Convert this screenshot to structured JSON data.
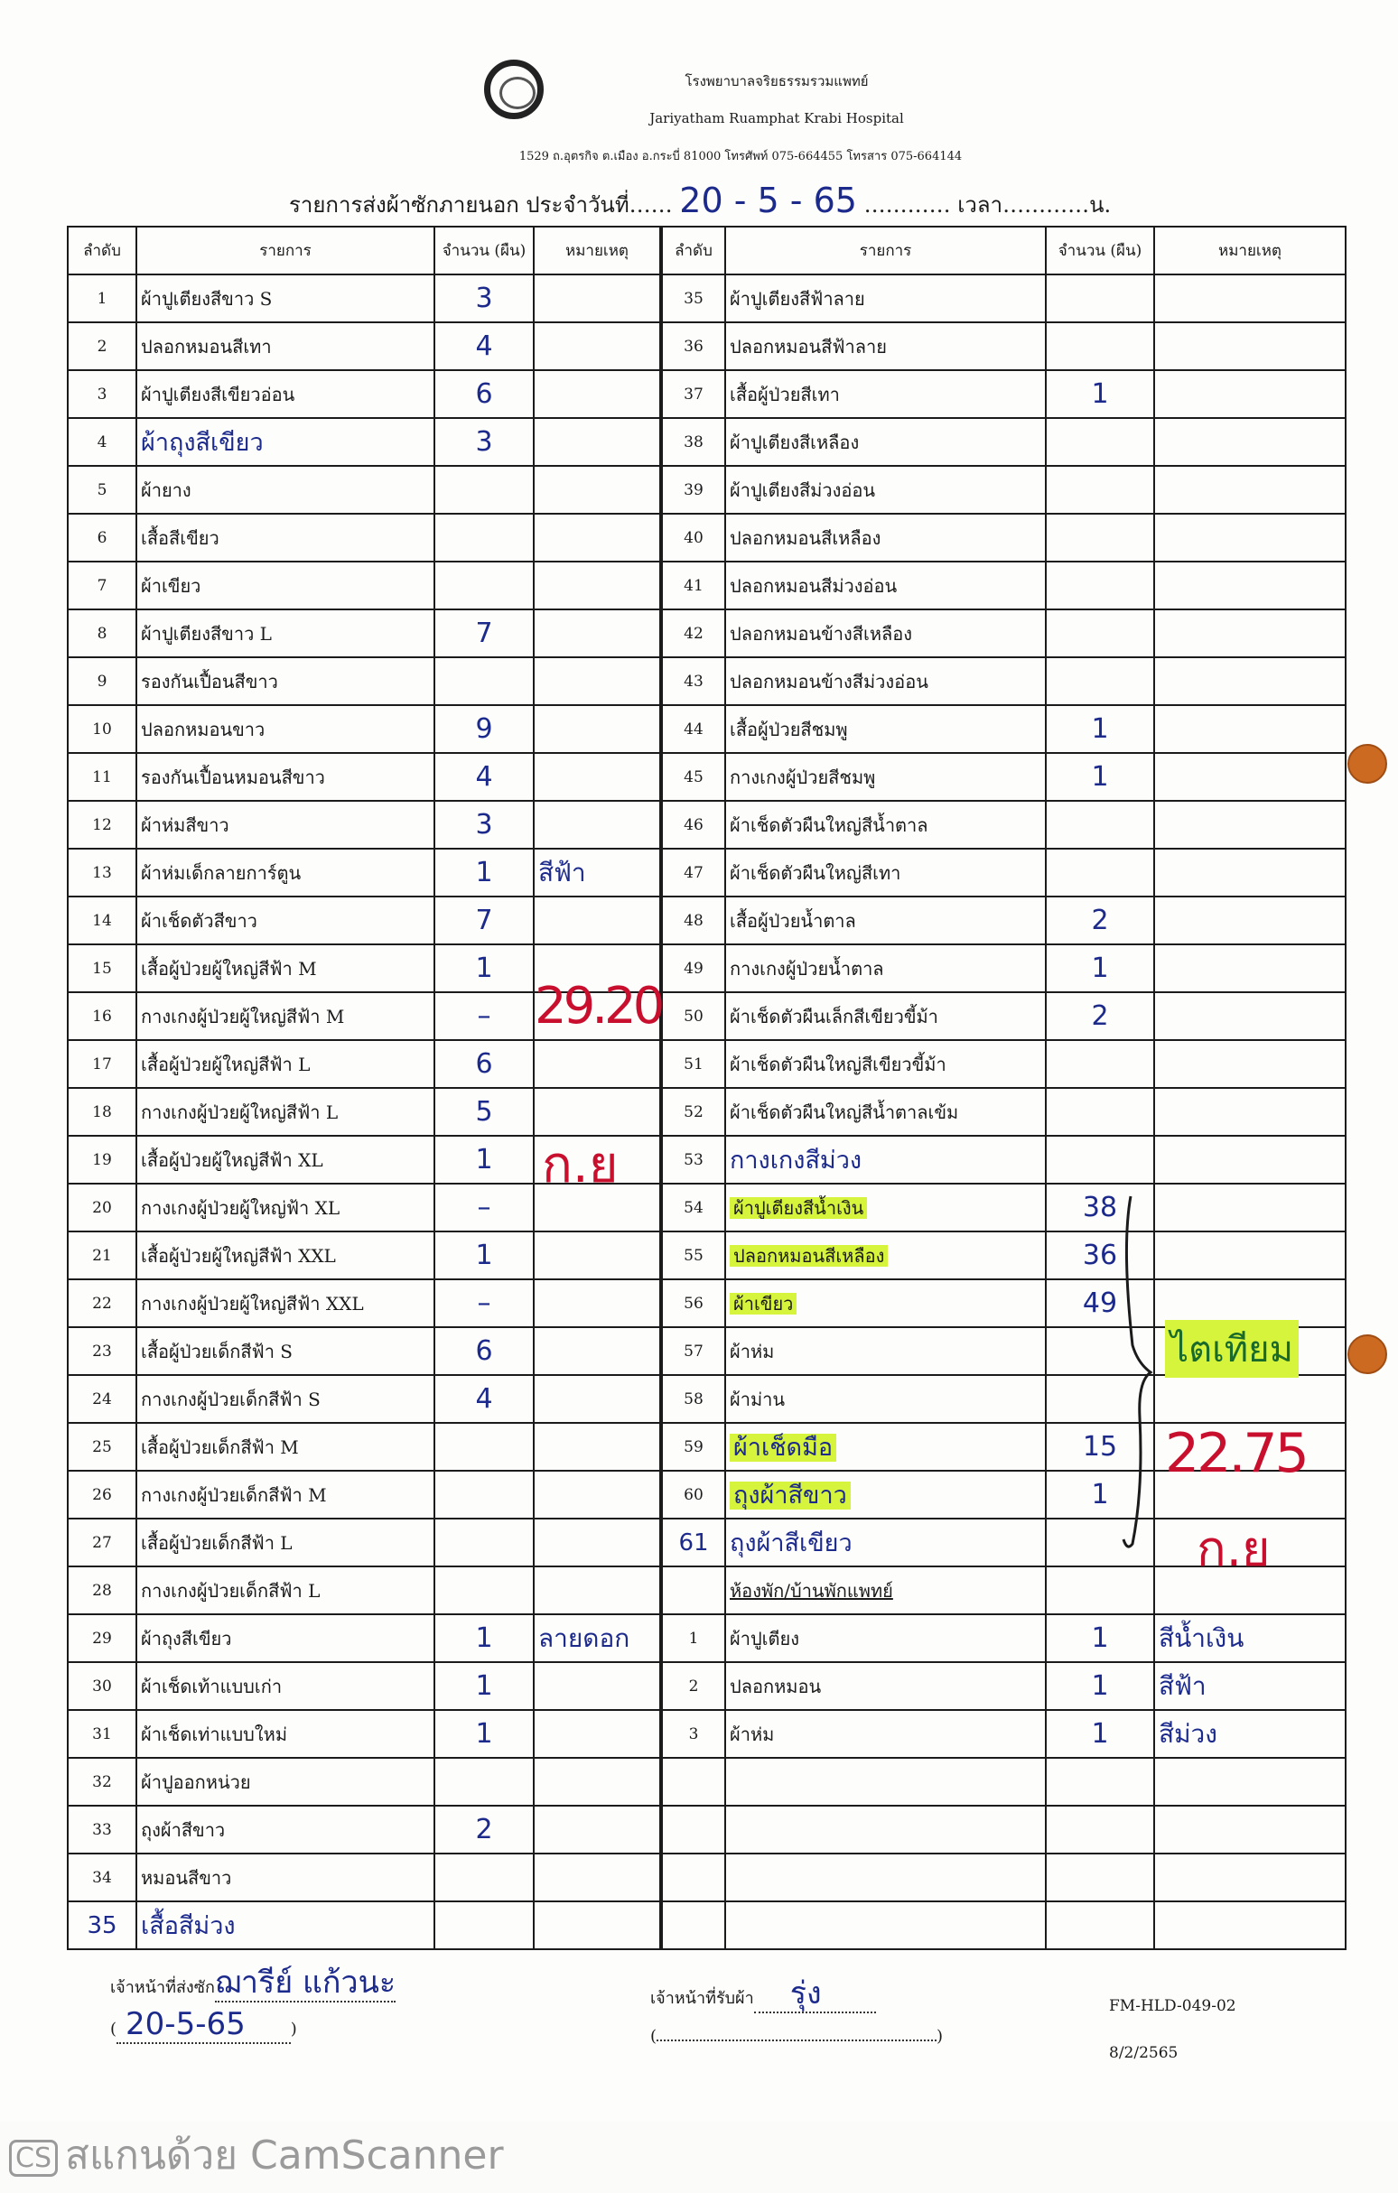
{
  "header": {
    "hospital_th": "โรงพยาบาลจริยธรรมรวมแพทย์",
    "hospital_en": "Jariyatham Ruamphat Krabi Hospital",
    "address": "1529 ถ.อุตรกิจ ต.เมือง อ.กระบี่ 81000 โทรศัพท์ 075-664455 โทรสาร 075-664144",
    "form_title": "รายการส่งผ้าซักภายนอก ประจำวันที่",
    "date_handwritten": "20 - 5 - 65",
    "time_label": "เวลา",
    "time_suffix": "น."
  },
  "columns": [
    "ลำดับ",
    "รายการ",
    "จำนวน (ผืน)",
    "หมายเหตุ"
  ],
  "left_rows": [
    {
      "no": "1",
      "item": "ผ้าปูเตียงสีขาว S",
      "qty": "3"
    },
    {
      "no": "2",
      "item": "ปลอกหมอนสีเทา",
      "qty": "4"
    },
    {
      "no": "3",
      "item": "ผ้าปูเตียงสีเขียวอ่อน",
      "qty": "6"
    },
    {
      "no": "4",
      "item": "ผ้าถุงสีเขียว",
      "qty": "3",
      "hand_item": true
    },
    {
      "no": "5",
      "item": "ผ้ายาง"
    },
    {
      "no": "6",
      "item": "เสื้อสีเขียว"
    },
    {
      "no": "7",
      "item": "ผ้าเขียว"
    },
    {
      "no": "8",
      "item": "ผ้าปูเตียงสีขาว L",
      "qty": "7"
    },
    {
      "no": "9",
      "item": "รองกันเปื้อนสีขาว"
    },
    {
      "no": "10",
      "item": "ปลอกหมอนขาว",
      "qty": "9"
    },
    {
      "no": "11",
      "item": "รองกันเปื้อนหมอนสีขาว",
      "qty": "4"
    },
    {
      "no": "12",
      "item": "ผ้าห่มสีขาว",
      "qty": "3"
    },
    {
      "no": "13",
      "item": "ผ้าห่มเด็กลายการ์ตูน",
      "qty": "1",
      "note": "สีฟ้า"
    },
    {
      "no": "14",
      "item": "ผ้าเช็ดตัวสีขาว",
      "qty": "7"
    },
    {
      "no": "15",
      "item": "เสื้อผู้ป่วยผู้ใหญ่สีฟ้า M",
      "qty": "1"
    },
    {
      "no": "16",
      "item": "กางเกงผู้ป่วยผู้ใหญ่สีฟ้า M",
      "qty": "–"
    },
    {
      "no": "17",
      "item": "เสื้อผู้ป่วยผู้ใหญ่สีฟ้า L",
      "qty": "6"
    },
    {
      "no": "18",
      "item": "กางเกงผู้ป่วยผู้ใหญ่สีฟ้า L",
      "qty": "5"
    },
    {
      "no": "19",
      "item": "เสื้อผู้ป่วยผู้ใหญ่สีฟ้า XL",
      "qty": "1"
    },
    {
      "no": "20",
      "item": "กางเกงผู้ป่วยผู้ใหญ่ฟ้า XL",
      "qty": "–"
    },
    {
      "no": "21",
      "item": "เสื้อผู้ป่วยผู้ใหญ่สีฟ้า XXL",
      "qty": "1"
    },
    {
      "no": "22",
      "item": "กางเกงผู้ป่วยผู้ใหญ่สีฟ้า XXL",
      "qty": "–"
    },
    {
      "no": "23",
      "item": "เสื้อผู้ป่วยเด็กสีฟ้า S",
      "qty": "6"
    },
    {
      "no": "24",
      "item": "กางเกงผู้ป่วยเด็กสีฟ้า S",
      "qty": "4"
    },
    {
      "no": "25",
      "item": "เสื้อผู้ป่วยเด็กสีฟ้า M"
    },
    {
      "no": "26",
      "item": "กางเกงผู้ป่วยเด็กสีฟ้า M"
    },
    {
      "no": "27",
      "item": "เสื้อผู้ป่วยเด็กสีฟ้า L"
    },
    {
      "no": "28",
      "item": "กางเกงผู้ป่วยเด็กสีฟ้า L"
    },
    {
      "no": "29",
      "item": "ผ้าถุงสีเขียว",
      "qty": "1",
      "note": "ลายดอก"
    },
    {
      "no": "30",
      "item": "ผ้าเช็ดเท้าแบบเก่า",
      "qty": "1"
    },
    {
      "no": "31",
      "item": "ผ้าเช็ดเท่าแบบใหม่",
      "qty": "1"
    },
    {
      "no": "32",
      "item": "ผ้าปูออกหน่วย"
    },
    {
      "no": "33",
      "item": "ถุงผ้าสีขาว",
      "qty": "2"
    },
    {
      "no": "34",
      "item": "หมอนสีขาว"
    },
    {
      "no": "35",
      "item": "เสื้อสีม่วง",
      "hand_item": true,
      "hand_no": true
    }
  ],
  "right_rows": [
    {
      "no": "35",
      "item": "ผ้าปูเตียงสีฟ้าลาย"
    },
    {
      "no": "36",
      "item": "ปลอกหมอนสีฟ้าลาย"
    },
    {
      "no": "37",
      "item": "เสื้อผู้ป่วยสีเทา",
      "qty": "1"
    },
    {
      "no": "38",
      "item": "ผ้าปูเตียงสีเหลือง"
    },
    {
      "no": "39",
      "item": "ผ้าปูเตียงสีม่วงอ่อน"
    },
    {
      "no": "40",
      "item": "ปลอกหมอนสีเหลือง"
    },
    {
      "no": "41",
      "item": "ปลอกหมอนสีม่วงอ่อน"
    },
    {
      "no": "42",
      "item": "ปลอกหมอนข้างสีเหลือง"
    },
    {
      "no": "43",
      "item": "ปลอกหมอนข้างสีม่วงอ่อน"
    },
    {
      "no": "44",
      "item": "เสื้อผู้ป่วยสีชมพู",
      "qty": "1"
    },
    {
      "no": "45",
      "item": "กางเกงผู้ป่วยสีชมพู",
      "qty": "1"
    },
    {
      "no": "46",
      "item": "ผ้าเช็ดตัวผืนใหญ่สีน้ำตาล"
    },
    {
      "no": "47",
      "item": "ผ้าเช็ดตัวผืนใหญ่สีเทา"
    },
    {
      "no": "48",
      "item": "เสื้อผู้ป่วยน้ำตาล",
      "qty": "2"
    },
    {
      "no": "49",
      "item": "กางเกงผู้ป่วยน้ำตาล",
      "qty": "1"
    },
    {
      "no": "50",
      "item": "ผ้าเช็ดตัวผืนเล็กสีเขียวขี้ม้า",
      "qty": "2"
    },
    {
      "no": "51",
      "item": "ผ้าเช็ดตัวผืนใหญ่สีเขียวขี้ม้า"
    },
    {
      "no": "52",
      "item": "ผ้าเช็ดตัวผืนใหญ่สีน้ำตาลเข้ม"
    },
    {
      "no": "53",
      "item": "กางเกงสีม่วง",
      "hand_item": true
    },
    {
      "no": "54",
      "item": "ผ้าปูเตียงสีน้ำเงิน",
      "qty": "38",
      "highlight": true
    },
    {
      "no": "55",
      "item": "ปลอกหมอนสีเหลือง",
      "qty": "36",
      "highlight": true
    },
    {
      "no": "56",
      "item": "ผ้าเขียว",
      "qty": "49",
      "highlight": true
    },
    {
      "no": "57",
      "item": "ผ้าห่ม"
    },
    {
      "no": "58",
      "item": "ผ้าม่าน"
    },
    {
      "no": "59",
      "item": "ผ้าเช็ดมือ",
      "qty": "15",
      "highlight": true,
      "hand_item": true
    },
    {
      "no": "60",
      "item": "ถุงผ้าสีขาว",
      "qty": "1",
      "highlight": true,
      "hand_item": true
    },
    {
      "no": "61",
      "item": "ถุงผ้าสีเขียว",
      "hand_item": true,
      "hand_no": true
    },
    {
      "no": "",
      "item": "ห้องพัก/บ้านพักแพทย์",
      "section": true
    },
    {
      "no": "1",
      "item": "ผ้าปูเตียง",
      "qty": "1",
      "note": "สีน้ำเงิน"
    },
    {
      "no": "2",
      "item": "ปลอกหมอน",
      "qty": "1",
      "note": "สีฟ้า"
    },
    {
      "no": "3",
      "item": "ผ้าห่ม",
      "qty": "1",
      "note": "สีม่วง"
    },
    {
      "no": "",
      "item": ""
    },
    {
      "no": "",
      "item": ""
    },
    {
      "no": "",
      "item": ""
    },
    {
      "no": "",
      "item": ""
    }
  ],
  "annotations": {
    "left_weight": "29.20",
    "left_unit": "ก.ย",
    "right_dept": "ไตเทียม",
    "right_weight": "22.75",
    "right_unit": "ก.ย"
  },
  "footer": {
    "sender_label": "เจ้าหน้าที่ส่งซัก",
    "sender_signature": "ฌารีย์ แก้วนะ",
    "sender_date": "20-5-65",
    "receiver_label": "เจ้าหน้าที่รับผ้า",
    "receiver_signature": "รุ่ง",
    "form_code": "FM-HLD-049-02",
    "form_date": "8/2/2565"
  },
  "watermark": {
    "badge": "CS",
    "text": "สแกนด้วย CamScanner"
  },
  "colors": {
    "ink": "#1c2a8c",
    "red_ink": "#c8102e",
    "highlighter": "#d7f43c",
    "dot": "#cc6a22"
  }
}
